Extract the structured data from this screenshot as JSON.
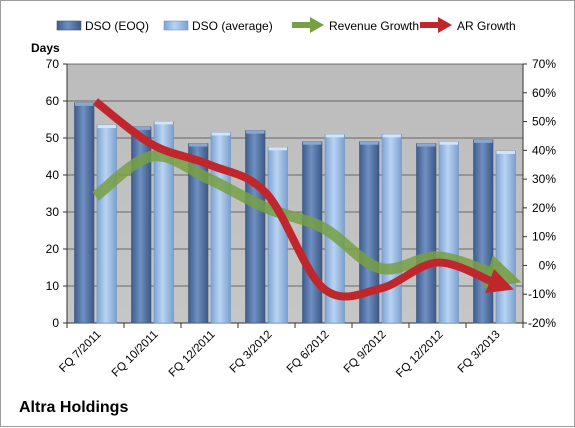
{
  "chart_data": {
    "type": "bar",
    "title": "",
    "ylabel": "Days",
    "ylim": [
      0,
      70
    ],
    "y_ticks": [
      "0",
      "10",
      "20",
      "30",
      "40",
      "50",
      "60",
      "70"
    ],
    "y2lim": [
      -0.2,
      0.7
    ],
    "y2_ticks": [
      "-20%",
      "-10%",
      "0%",
      "10%",
      "20%",
      "30%",
      "40%",
      "50%",
      "60%",
      "70%"
    ],
    "categories": [
      "FQ 7/2011",
      "FQ 10/2011",
      "FQ 12/2011",
      "FQ 3/2012",
      "FQ 6/2012",
      "FQ 9/2012",
      "FQ 12/2012",
      "FQ 3/2013"
    ],
    "series": [
      {
        "name": "DSO (EOQ)",
        "kind": "bar",
        "axis": "left",
        "color": "#4f6fa0",
        "values": [
          59.5,
          53,
          48.5,
          52,
          49,
          49,
          48.5,
          49.5
        ]
      },
      {
        "name": "DSO (average)",
        "kind": "bar",
        "axis": "left",
        "color": "#8fb3e0",
        "values": [
          53.5,
          54.5,
          51.5,
          47.5,
          51,
          51,
          49,
          46.5
        ]
      },
      {
        "name": "Revenue Growth",
        "kind": "arrow-line",
        "axis": "right",
        "color": "#77a044",
        "values": [
          0.24,
          0.38,
          0.3,
          0.2,
          0.13,
          -0.01,
          0.03,
          -0.03
        ]
      },
      {
        "name": "AR Growth",
        "kind": "arrow-line",
        "axis": "right",
        "color": "#c0272d",
        "values": [
          0.57,
          0.42,
          0.35,
          0.25,
          -0.08,
          -0.08,
          0.01,
          -0.06
        ]
      }
    ],
    "legend_position": "top",
    "grid": true,
    "plot_background": "#c0c0c0"
  },
  "footer": {
    "title": "Altra Holdings"
  }
}
